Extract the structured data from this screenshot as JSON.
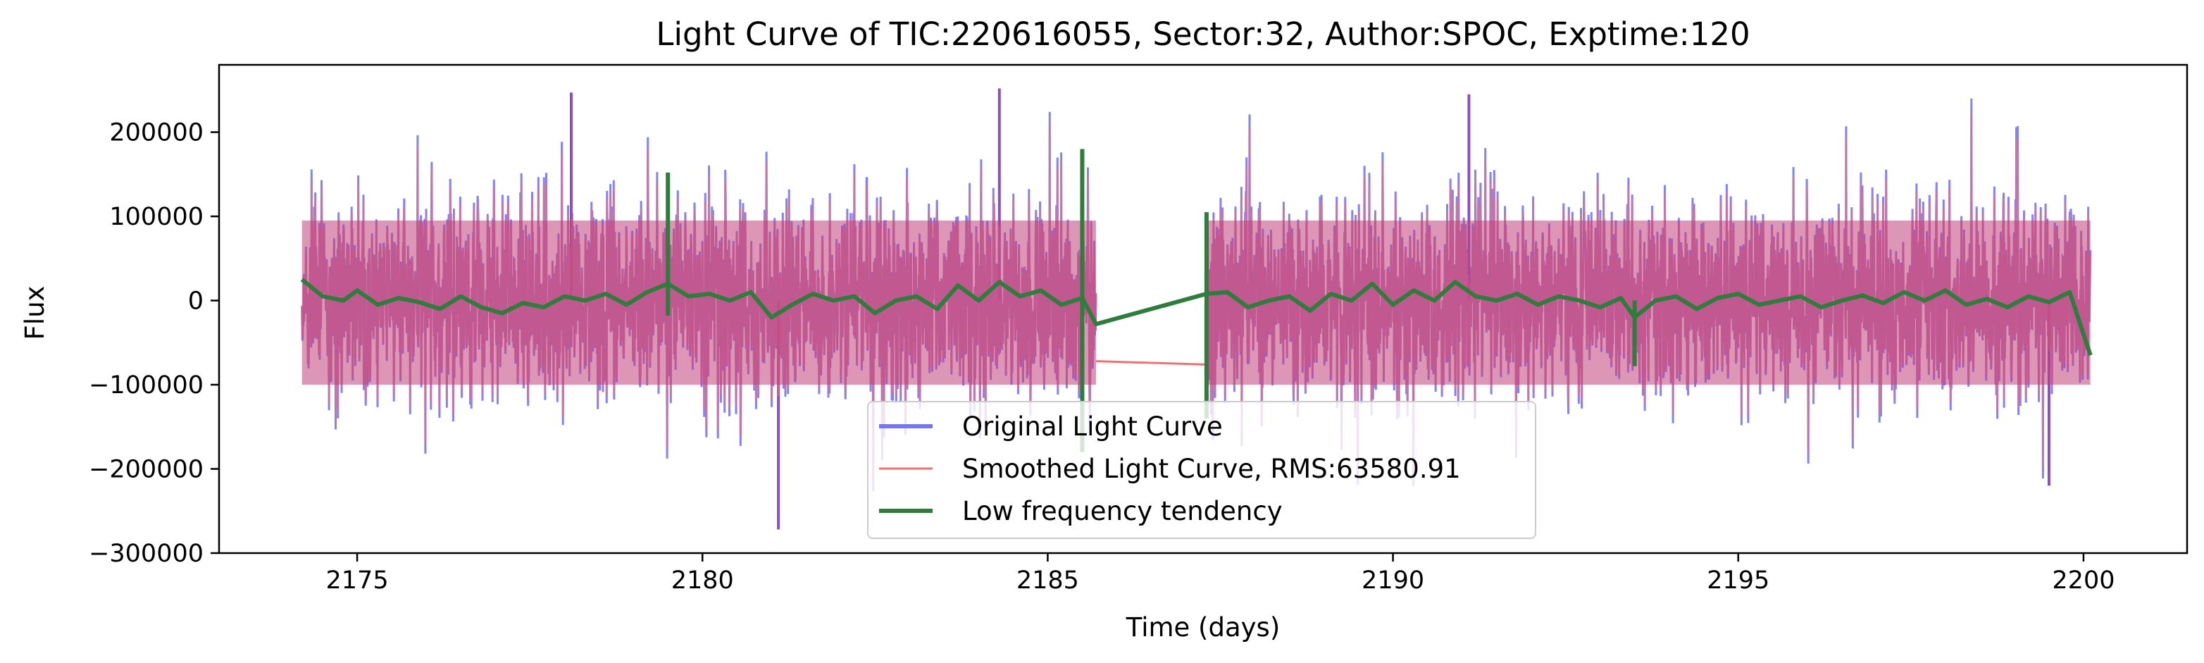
{
  "chart_data": {
    "type": "line",
    "title": "Light Curve of TIC:220616055, Sector:32, Author:SPOC, Exptime:120",
    "xlabel": "Time (days)",
    "ylabel": "Flux",
    "xlim": [
      2173,
      2201.5
    ],
    "ylim": [
      -300000,
      280000
    ],
    "xticks": [
      2175,
      2180,
      2185,
      2190,
      2195,
      2200
    ],
    "xtick_labels": [
      "2175",
      "2180",
      "2185",
      "2190",
      "2195",
      "2200"
    ],
    "yticks": [
      -300000,
      -200000,
      -100000,
      0,
      100000,
      200000
    ],
    "ytick_labels": [
      "−300000",
      "−200000",
      "−100000",
      "0",
      "100000",
      "200000"
    ],
    "grid": false,
    "legend_position": "lower center",
    "data_gap": [
      2185.7,
      2187.3
    ],
    "series": [
      {
        "name": "Original Light Curve",
        "color": "#7575f5",
        "x_range": [
          2174.2,
          2200.1
        ],
        "envelope_typical": [
          -130000,
          140000
        ],
        "extremes": [
          {
            "x": 2178.1,
            "y": 247000
          },
          {
            "x": 2184.3,
            "y": 252000
          },
          {
            "x": 2191.1,
            "y": 245000
          },
          {
            "x": 2181.1,
            "y": -272000
          },
          {
            "x": 2199.5,
            "y": -220000
          }
        ]
      },
      {
        "name": "Smoothed Light Curve, RMS:63580.91",
        "color": "#f07070",
        "x_range": [
          2174.2,
          2200.1
        ],
        "gap_line": [
          {
            "x": 2185.7,
            "y": -72000
          },
          {
            "x": 2187.3,
            "y": -76000
          }
        ]
      },
      {
        "name": "Low frequency tendency",
        "color": "#2e7d3c",
        "points": [
          [
            2174.2,
            25000
          ],
          [
            2174.5,
            5000
          ],
          [
            2174.8,
            0
          ],
          [
            2175.0,
            12000
          ],
          [
            2175.3,
            -5000
          ],
          [
            2175.6,
            3000
          ],
          [
            2175.9,
            -2000
          ],
          [
            2176.2,
            -10000
          ],
          [
            2176.5,
            5000
          ],
          [
            2176.8,
            -8000
          ],
          [
            2177.1,
            -15000
          ],
          [
            2177.4,
            -3000
          ],
          [
            2177.7,
            -8000
          ],
          [
            2178.0,
            5000
          ],
          [
            2178.3,
            0
          ],
          [
            2178.6,
            8000
          ],
          [
            2178.9,
            -5000
          ],
          [
            2179.2,
            10000
          ],
          [
            2179.5,
            20000
          ],
          [
            2179.8,
            5000
          ],
          [
            2180.1,
            8000
          ],
          [
            2180.4,
            0
          ],
          [
            2180.7,
            10000
          ],
          [
            2181.0,
            -20000
          ],
          [
            2181.3,
            -5000
          ],
          [
            2181.6,
            8000
          ],
          [
            2181.9,
            0
          ],
          [
            2182.2,
            5000
          ],
          [
            2182.5,
            -15000
          ],
          [
            2182.8,
            0
          ],
          [
            2183.1,
            5000
          ],
          [
            2183.4,
            -10000
          ],
          [
            2183.7,
            18000
          ],
          [
            2184.0,
            0
          ],
          [
            2184.3,
            22000
          ],
          [
            2184.6,
            5000
          ],
          [
            2184.9,
            12000
          ],
          [
            2185.2,
            -5000
          ],
          [
            2185.5,
            3000
          ],
          [
            2185.7,
            -28000
          ],
          [
            2187.3,
            8000
          ],
          [
            2187.6,
            10000
          ],
          [
            2187.9,
            -8000
          ],
          [
            2188.2,
            0
          ],
          [
            2188.5,
            5000
          ],
          [
            2188.8,
            -12000
          ],
          [
            2189.1,
            8000
          ],
          [
            2189.4,
            0
          ],
          [
            2189.7,
            20000
          ],
          [
            2190.0,
            -5000
          ],
          [
            2190.3,
            12000
          ],
          [
            2190.6,
            0
          ],
          [
            2190.9,
            22000
          ],
          [
            2191.2,
            5000
          ],
          [
            2191.5,
            0
          ],
          [
            2191.8,
            8000
          ],
          [
            2192.1,
            -5000
          ],
          [
            2192.4,
            5000
          ],
          [
            2192.7,
            0
          ],
          [
            2193.0,
            -8000
          ],
          [
            2193.3,
            3000
          ],
          [
            2193.5,
            -20000
          ],
          [
            2193.8,
            0
          ],
          [
            2194.1,
            5000
          ],
          [
            2194.4,
            -10000
          ],
          [
            2194.7,
            3000
          ],
          [
            2195.0,
            8000
          ],
          [
            2195.3,
            -5000
          ],
          [
            2195.6,
            0
          ],
          [
            2195.9,
            5000
          ],
          [
            2196.2,
            -8000
          ],
          [
            2196.5,
            0
          ],
          [
            2196.8,
            6000
          ],
          [
            2197.1,
            -3000
          ],
          [
            2197.4,
            10000
          ],
          [
            2197.7,
            0
          ],
          [
            2198.0,
            12000
          ],
          [
            2198.3,
            -5000
          ],
          [
            2198.6,
            2000
          ],
          [
            2198.9,
            -8000
          ],
          [
            2199.2,
            5000
          ],
          [
            2199.5,
            -2000
          ],
          [
            2199.8,
            10000
          ],
          [
            2200.1,
            -65000
          ]
        ],
        "spikes": [
          {
            "x": 2179.5,
            "ymin": -18000,
            "ymax": 152000
          },
          {
            "x": 2185.5,
            "ymin": -180000,
            "ymax": 180000
          },
          {
            "x": 2187.3,
            "ymin": -140000,
            "ymax": 105000
          },
          {
            "x": 2193.5,
            "ymin": -78000,
            "ymax": 0
          }
        ]
      }
    ]
  }
}
